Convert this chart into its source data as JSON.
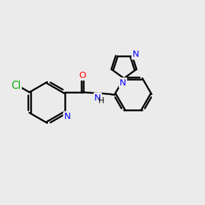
{
  "background_color": "#ebebeb",
  "bond_color": "#000000",
  "bond_width": 1.8,
  "atom_colors": {
    "N": "#0000ff",
    "O": "#ff0000",
    "Cl": "#00aa00",
    "C": "#000000"
  },
  "font_size": 9.5,
  "figsize": [
    3.0,
    3.0
  ],
  "dpi": 100
}
